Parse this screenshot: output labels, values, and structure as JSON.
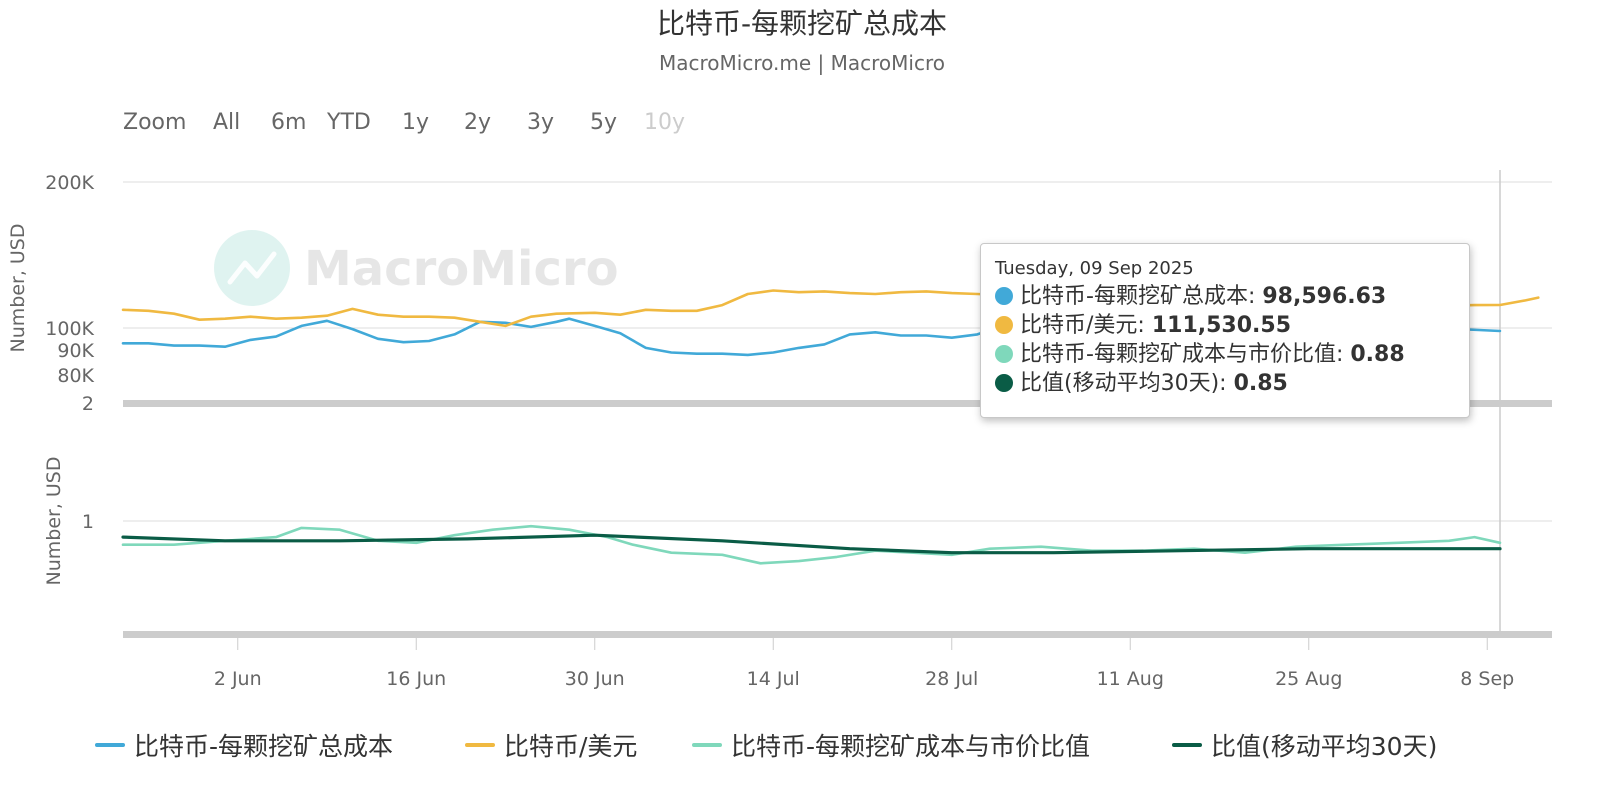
{
  "chart_data": {
    "type": "line",
    "title": "比特币-每颗挖矿总成本",
    "subtitle": "MacroMicro.me | MacroMicro",
    "watermark": "MacroMicro",
    "range_selector": {
      "label": "Zoom",
      "buttons": [
        "All",
        "6m",
        "YTD",
        "1y",
        "2y",
        "3y",
        "5y",
        "10y"
      ],
      "disabled": [
        "10y"
      ]
    },
    "x_tick_labels": [
      "2 Jun",
      "16 Jun",
      "30 Jun",
      "14 Jul",
      "28 Jul",
      "11 Aug",
      "25 Aug",
      "8 Sep"
    ],
    "x_range": [
      "2025-05-24",
      "2025-09-12"
    ],
    "panes": [
      {
        "ylabel": "Number, USD",
        "scale": "log",
        "ylim": [
          75000,
          200000
        ],
        "y_tick_labels": [
          {
            "label": "200K",
            "value": 200000
          },
          {
            "label": "100K",
            "value": 100000
          },
          {
            "label": "90K",
            "value": 90000
          },
          {
            "label": "80K",
            "value": 80000
          }
        ]
      },
      {
        "ylabel": "Number, USD",
        "scale": "log",
        "ylim": [
          0.5,
          2
        ],
        "y_tick_labels": [
          {
            "label": "2",
            "value": 2
          },
          {
            "label": "1",
            "value": 1
          }
        ]
      }
    ],
    "series": [
      {
        "name": "比特币-每颗挖矿总成本",
        "color": "#41a9d8",
        "pane": 0,
        "points": [
          [
            "2025-05-24",
            93000
          ],
          [
            "2025-05-26",
            93000
          ],
          [
            "2025-05-28",
            92000
          ],
          [
            "2025-05-30",
            92000
          ],
          [
            "2025-06-01",
            91500
          ],
          [
            "2025-06-03",
            94500
          ],
          [
            "2025-06-05",
            96000
          ],
          [
            "2025-06-07",
            101000
          ],
          [
            "2025-06-09",
            103500
          ],
          [
            "2025-06-11",
            99500
          ],
          [
            "2025-06-13",
            95000
          ],
          [
            "2025-06-15",
            93500
          ],
          [
            "2025-06-17",
            94000
          ],
          [
            "2025-06-19",
            97000
          ],
          [
            "2025-06-21",
            103000
          ],
          [
            "2025-06-23",
            102500
          ],
          [
            "2025-06-25",
            100500
          ],
          [
            "2025-06-27",
            103000
          ],
          [
            "2025-06-28",
            104500
          ],
          [
            "2025-06-30",
            101000
          ],
          [
            "2025-07-02",
            97500
          ],
          [
            "2025-07-04",
            91000
          ],
          [
            "2025-07-06",
            89000
          ],
          [
            "2025-07-08",
            88500
          ],
          [
            "2025-07-10",
            88500
          ],
          [
            "2025-07-12",
            88000
          ],
          [
            "2025-07-14",
            89000
          ],
          [
            "2025-07-16",
            91000
          ],
          [
            "2025-07-18",
            92500
          ],
          [
            "2025-07-20",
            97000
          ],
          [
            "2025-07-22",
            98000
          ],
          [
            "2025-07-24",
            96500
          ],
          [
            "2025-07-26",
            96500
          ],
          [
            "2025-07-28",
            95500
          ],
          [
            "2025-07-30",
            97000
          ],
          [
            "2025-08-01",
            101000
          ],
          [
            "2025-08-05",
            99500
          ],
          [
            "2025-08-10",
            100500
          ],
          [
            "2025-08-15",
            101000
          ],
          [
            "2025-08-20",
            100500
          ],
          [
            "2025-08-25",
            101000
          ],
          [
            "2025-08-30",
            100500
          ],
          [
            "2025-09-04",
            100000
          ],
          [
            "2025-09-09",
            98596.63
          ]
        ]
      },
      {
        "name": "比特币/美元",
        "color": "#f0b941",
        "pane": 0,
        "points": [
          [
            "2025-05-24",
            109000
          ],
          [
            "2025-05-26",
            108500
          ],
          [
            "2025-05-28",
            107000
          ],
          [
            "2025-05-30",
            104000
          ],
          [
            "2025-06-01",
            104500
          ],
          [
            "2025-06-03",
            105500
          ],
          [
            "2025-06-05",
            104500
          ],
          [
            "2025-06-07",
            105000
          ],
          [
            "2025-06-09",
            106000
          ],
          [
            "2025-06-11",
            109500
          ],
          [
            "2025-06-13",
            106500
          ],
          [
            "2025-06-15",
            105500
          ],
          [
            "2025-06-17",
            105500
          ],
          [
            "2025-06-19",
            105000
          ],
          [
            "2025-06-21",
            103000
          ],
          [
            "2025-06-23",
            101000
          ],
          [
            "2025-06-25",
            105500
          ],
          [
            "2025-06-27",
            107000
          ],
          [
            "2025-06-30",
            107500
          ],
          [
            "2025-07-02",
            106500
          ],
          [
            "2025-07-04",
            109000
          ],
          [
            "2025-07-06",
            108500
          ],
          [
            "2025-07-08",
            108500
          ],
          [
            "2025-07-10",
            111500
          ],
          [
            "2025-07-12",
            117500
          ],
          [
            "2025-07-14",
            119500
          ],
          [
            "2025-07-16",
            118500
          ],
          [
            "2025-07-18",
            119000
          ],
          [
            "2025-07-20",
            118000
          ],
          [
            "2025-07-22",
            117500
          ],
          [
            "2025-07-24",
            118500
          ],
          [
            "2025-07-26",
            119000
          ],
          [
            "2025-07-28",
            118000
          ],
          [
            "2025-07-30",
            117500
          ],
          [
            "2025-08-02",
            116500
          ],
          [
            "2025-08-08",
            116500
          ],
          [
            "2025-08-14",
            118000
          ],
          [
            "2025-08-20",
            114000
          ],
          [
            "2025-08-25",
            113000
          ],
          [
            "2025-08-30",
            110000
          ],
          [
            "2025-09-04",
            111000
          ],
          [
            "2025-09-07",
            111500
          ],
          [
            "2025-09-09",
            111530.55
          ],
          [
            "2025-09-11",
            114000
          ],
          [
            "2025-09-12",
            115500
          ]
        ]
      },
      {
        "name": "比特币-每颗挖矿成本与市价比值",
        "color": "#7fd8bb",
        "pane": 1,
        "points": [
          [
            "2025-05-24",
            0.87
          ],
          [
            "2025-05-28",
            0.87
          ],
          [
            "2025-06-01",
            0.89
          ],
          [
            "2025-06-05",
            0.91
          ],
          [
            "2025-06-07",
            0.96
          ],
          [
            "2025-06-10",
            0.95
          ],
          [
            "2025-06-13",
            0.89
          ],
          [
            "2025-06-16",
            0.88
          ],
          [
            "2025-06-19",
            0.92
          ],
          [
            "2025-06-22",
            0.95
          ],
          [
            "2025-06-25",
            0.97
          ],
          [
            "2025-06-28",
            0.95
          ],
          [
            "2025-07-01",
            0.91
          ],
          [
            "2025-07-03",
            0.87
          ],
          [
            "2025-07-06",
            0.83
          ],
          [
            "2025-07-10",
            0.82
          ],
          [
            "2025-07-13",
            0.78
          ],
          [
            "2025-07-16",
            0.79
          ],
          [
            "2025-07-19",
            0.81
          ],
          [
            "2025-07-22",
            0.84
          ],
          [
            "2025-07-25",
            0.83
          ],
          [
            "2025-07-28",
            0.82
          ],
          [
            "2025-07-31",
            0.85
          ],
          [
            "2025-08-04",
            0.86
          ],
          [
            "2025-08-08",
            0.84
          ],
          [
            "2025-08-12",
            0.84
          ],
          [
            "2025-08-16",
            0.85
          ],
          [
            "2025-08-20",
            0.83
          ],
          [
            "2025-08-24",
            0.86
          ],
          [
            "2025-08-28",
            0.87
          ],
          [
            "2025-09-01",
            0.88
          ],
          [
            "2025-09-05",
            0.89
          ],
          [
            "2025-09-07",
            0.91
          ],
          [
            "2025-09-09",
            0.88
          ]
        ]
      },
      {
        "name": "比值(移动平均30天)",
        "color": "#0a5c46",
        "pane": 1,
        "points": [
          [
            "2025-05-24",
            0.91
          ],
          [
            "2025-06-01",
            0.89
          ],
          [
            "2025-06-10",
            0.89
          ],
          [
            "2025-06-20",
            0.9
          ],
          [
            "2025-06-30",
            0.92
          ],
          [
            "2025-07-10",
            0.89
          ],
          [
            "2025-07-20",
            0.85
          ],
          [
            "2025-07-28",
            0.83
          ],
          [
            "2025-08-05",
            0.83
          ],
          [
            "2025-08-15",
            0.84
          ],
          [
            "2025-08-25",
            0.85
          ],
          [
            "2025-09-02",
            0.85
          ],
          [
            "2025-09-09",
            0.85
          ]
        ]
      }
    ],
    "tooltip": {
      "date": "Tuesday, 09 Sep 2025",
      "items": [
        {
          "label": "比特币-每颗挖矿总成本: ",
          "value": "98,596.63",
          "color": "#41a9d8"
        },
        {
          "label": "比特币/美元: ",
          "value": "111,530.55",
          "color": "#f0b941"
        },
        {
          "label": "比特币-每颗挖矿成本与市价比值: ",
          "value": "0.88",
          "color": "#7fd8bb"
        },
        {
          "label": "比值(移动平均30天): ",
          "value": "0.85",
          "color": "#0a5c46"
        }
      ]
    },
    "crosshair_date": "2025-09-09",
    "legend_position": "bottom",
    "grid": true
  }
}
